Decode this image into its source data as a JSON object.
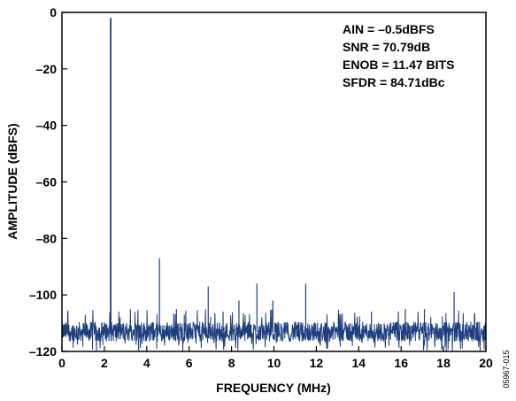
{
  "chart_data": {
    "type": "line",
    "xlabel": "FREQUENCY (MHz)",
    "ylabel": "AMPLITUDE (dBFS)",
    "xlim": [
      0,
      20
    ],
    "ylim": [
      -120,
      0
    ],
    "x_ticks": [
      0,
      2,
      4,
      6,
      8,
      10,
      12,
      14,
      16,
      18,
      20
    ],
    "y_ticks": [
      0,
      -20,
      -40,
      -60,
      -80,
      -100,
      -120
    ],
    "x_tick_labels": [
      "0",
      "2",
      "4",
      "6",
      "8",
      "10",
      "12",
      "14",
      "16",
      "18",
      "20"
    ],
    "y_tick_labels": [
      "0",
      "–20",
      "–40",
      "–60",
      "–80",
      "–100",
      "–120"
    ],
    "grid": false,
    "series_color": "#1f3f7f",
    "noise_floor": {
      "mean_dbfs": -113,
      "max_dbfs": -105,
      "min_dbfs": -120
    },
    "peaks": [
      {
        "x": 2.3,
        "y": -2
      },
      {
        "x": 4.6,
        "y": -87
      },
      {
        "x": 5.4,
        "y": -105
      },
      {
        "x": 6.9,
        "y": -97
      },
      {
        "x": 7.6,
        "y": -106
      },
      {
        "x": 8.35,
        "y": -102
      },
      {
        "x": 9.2,
        "y": -96
      },
      {
        "x": 9.95,
        "y": -102
      },
      {
        "x": 11.5,
        "y": -96
      },
      {
        "x": 14.6,
        "y": -106
      },
      {
        "x": 16.2,
        "y": -105
      },
      {
        "x": 17.1,
        "y": -105
      },
      {
        "x": 18.5,
        "y": -99
      }
    ],
    "annotations": [
      "AIN = –0.5dBFS",
      "SNR = 70.79dB",
      "ENOB = 11.47 BITS",
      "SFDR = 84.71dBc"
    ]
  },
  "figure_id": "05967-015"
}
